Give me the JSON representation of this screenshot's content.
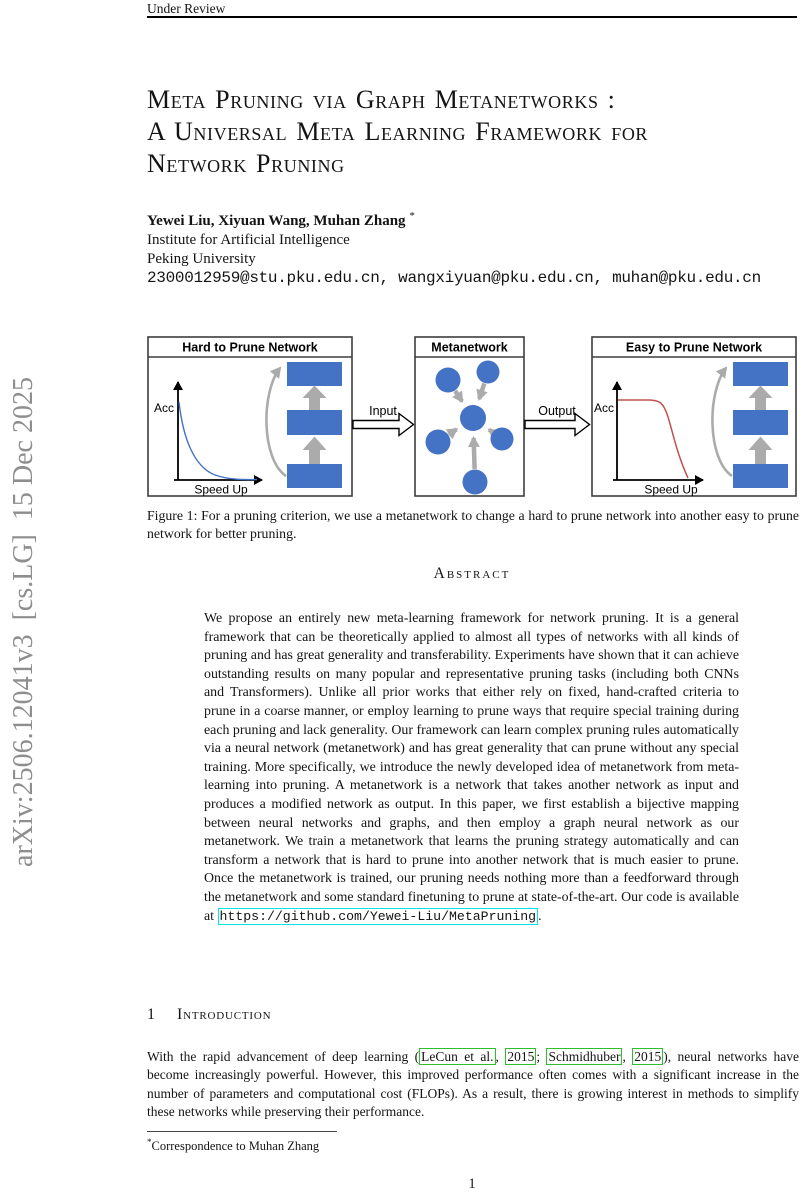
{
  "page": {
    "header_left": "Under Review",
    "arxiv_stamp": "arXiv:2506.12041v3  [cs.LG]  15 Dec 2025",
    "page_number": "1"
  },
  "title": {
    "line1": "Meta Pruning via Graph Metanetworks :",
    "line2": "A Universal Meta Learning Framework for",
    "line3": "Network Pruning"
  },
  "authors": {
    "names": "Yewei Liu, Xiyuan Wang, Muhan Zhang",
    "footnote_marker": "*",
    "affiliation_line1": "Institute for Artificial Intelligence",
    "affiliation_line2": "Peking University",
    "emails": "2300012959@stu.pku.edu.cn, wangxiyuan@pku.edu.cn, muhan@pku.edu.cn"
  },
  "figure": {
    "panels": {
      "left_title": "Hard to Prune Network",
      "middle_title": "Metanetwork",
      "right_title": "Easy to Prune Network"
    },
    "labels": {
      "acc_left": "Acc",
      "speedup_left": "Speed Up",
      "acc_right": "Acc",
      "speedup_right": "Speed Up",
      "input": "Input",
      "output": "Output"
    },
    "colors": {
      "block_blue": "#4472C4",
      "arrow_gray": "#ABABAB",
      "curve_blue": "#4472C4",
      "curve_red": "#C0504D"
    },
    "caption": "Figure 1: For a pruning criterion, we use a metanetwork to change a hard to prune network into another easy to prune network for better pruning."
  },
  "abstract": {
    "heading": "Abstract",
    "body": "We propose an entirely new meta-learning framework for network pruning. It is a general framework that can be theoretically applied to almost all types of networks with all kinds of pruning and has great generality and transferability. Experiments have shown that it can achieve outstanding results on many popular and representative pruning tasks (including both CNNs and Transformers). Unlike all prior works that either rely on fixed, hand-crafted criteria to prune in a coarse manner, or employ learning to prune ways that require special training during each pruning and lack generality. Our framework can learn complex pruning rules automatically via a neural network (metanetwork) and has great generality that can prune without any special training. More specifically, we introduce the newly developed idea of metanetwork from meta-learning into pruning. A metanetwork is a network that takes another network as input and produces a modified network as output. In this paper, we first establish a bijective mapping between neural networks and graphs, and then employ a graph neural network as our metanetwork. We train a metanetwork that learns the pruning strategy automatically and can transform a network that is hard to prune into another network that is much easier to prune. Once the metanetwork is trained, our pruning needs nothing more than a feedforward through the metanetwork and some standard finetuning to prune at state-of-the-art. Our code is available at ",
    "code_link": "https://github.com/Yewei-Liu/MetaPruning",
    "after_link": "."
  },
  "introduction": {
    "section_number": "1",
    "section_title": "Introduction",
    "paragraph_segments": [
      {
        "t": "With the rapid advancement of deep learning (",
        "cite": false
      },
      {
        "t": "LeCun et al.",
        "cite": true
      },
      {
        "t": ", ",
        "cite": false
      },
      {
        "t": "2015",
        "cite": true
      },
      {
        "t": "; ",
        "cite": false
      },
      {
        "t": "Schmidhuber",
        "cite": true
      },
      {
        "t": ", ",
        "cite": false
      },
      {
        "t": "2015",
        "cite": true
      },
      {
        "t": "), neural networks have become increasingly powerful. However, this improved performance often comes with a significant increase in the number of parameters and computational cost (FLOPs). As a result, there is growing interest in methods to simplify these networks while preserving their performance.",
        "cite": false
      }
    ]
  },
  "footnote": {
    "marker": "*",
    "text": "Correspondence to Muhan Zhang"
  },
  "link_colors": {
    "citation_border": "#2dbe2d",
    "url_border": "#00e6e6"
  }
}
